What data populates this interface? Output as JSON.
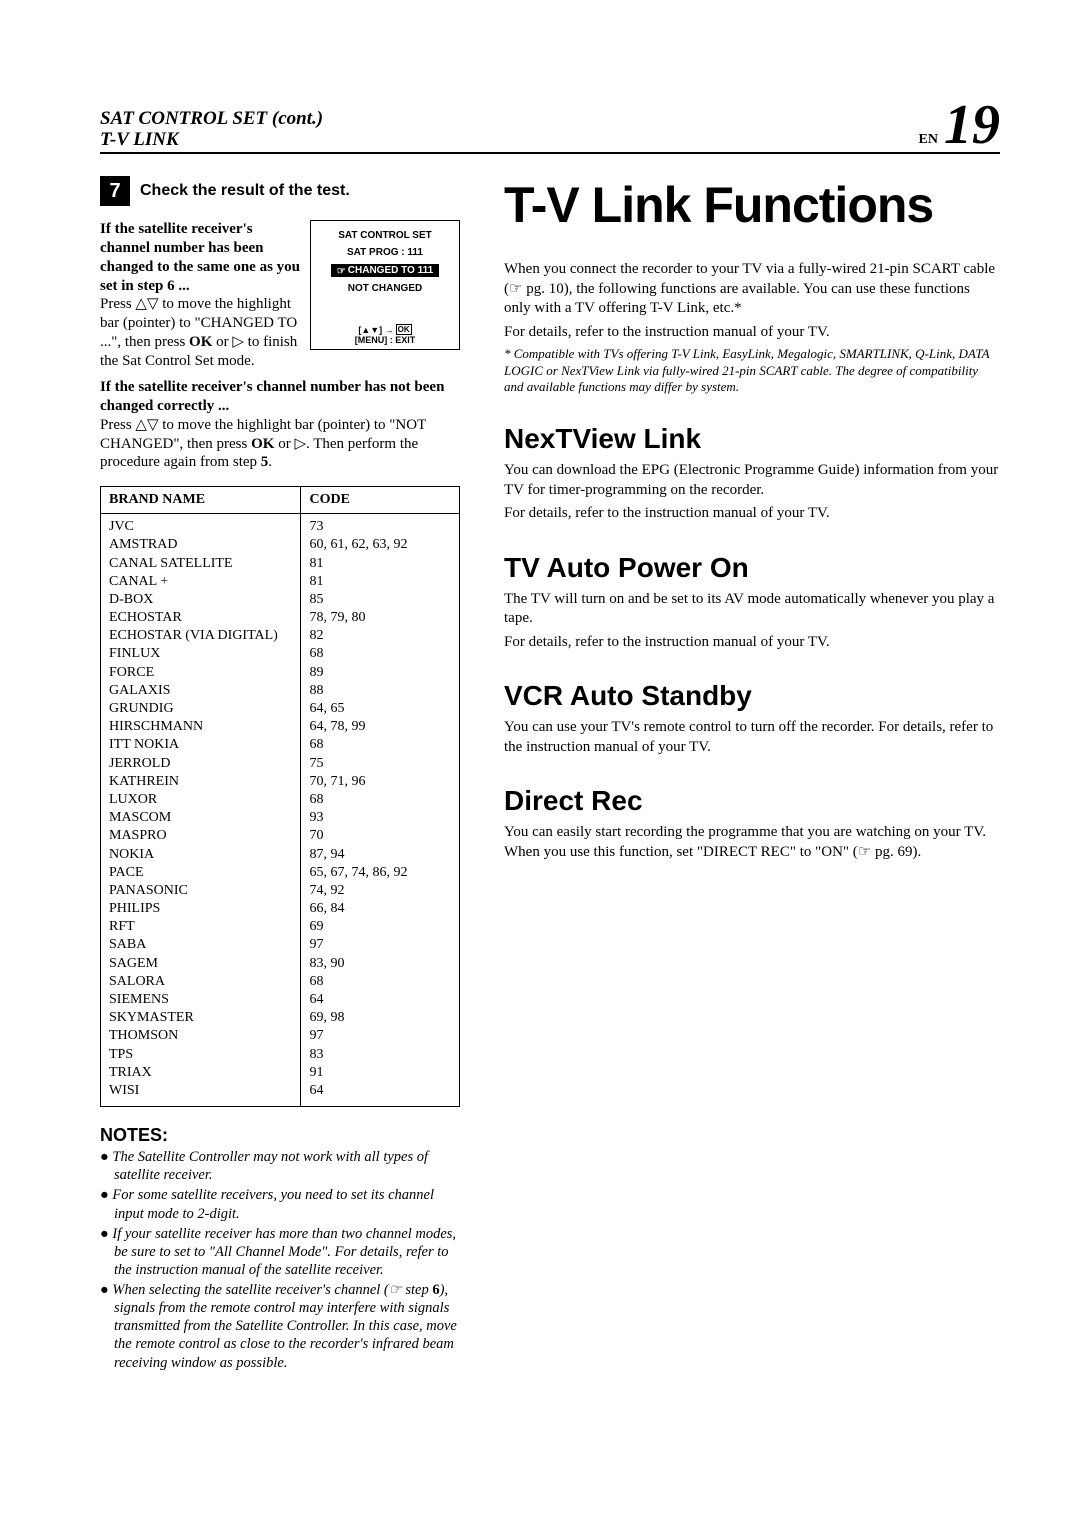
{
  "header": {
    "title_line1": "SAT CONTROL SET (cont.)",
    "title_line2": "T-V LINK",
    "en_label": "EN",
    "page": "19"
  },
  "step": {
    "num": "7",
    "title": "Check the result of the test."
  },
  "intro": {
    "bold1": "If the satellite receiver's channel number has been changed to the same one as you set in step 6 ...",
    "text1a": "Press ",
    "text1b": " to move the highlight bar (pointer) to \"CHANGED TO ...\", then press ",
    "ok": "OK",
    "text1c": " or ▷ to finish the Sat Control Set mode.",
    "bold2": "If the satellite receiver's channel number has not been changed correctly ...",
    "text2a": "Press ",
    "text2b": " to move the highlight bar (pointer) to \"NOT CHANGED\", then press ",
    "text2c": " or ▷. Then perform the procedure again from step ",
    "step5": "5",
    "period": "."
  },
  "osd": {
    "line1": "SAT CONTROL SET",
    "line2": "SAT PROG : 111",
    "highlight": "CHANGED TO 111",
    "line4": "NOT CHANGED",
    "footer_nav": "[▲▼] →",
    "footer_menu": "[MENU] : EXIT"
  },
  "table": {
    "h_brand": "BRAND NAME",
    "h_code": "CODE",
    "rows": [
      {
        "b": "JVC",
        "c": "73"
      },
      {
        "b": "AMSTRAD",
        "c": "60, 61, 62, 63, 92"
      },
      {
        "b": "CANAL SATELLITE",
        "c": "81"
      },
      {
        "b": "CANAL +",
        "c": "81"
      },
      {
        "b": "D-BOX",
        "c": "85"
      },
      {
        "b": "ECHOSTAR",
        "c": "78, 79, 80"
      },
      {
        "b": "ECHOSTAR (VIA DIGITAL)",
        "c": "82"
      },
      {
        "b": "FINLUX",
        "c": "68"
      },
      {
        "b": "FORCE",
        "c": "89"
      },
      {
        "b": "GALAXIS",
        "c": "88"
      },
      {
        "b": "GRUNDIG",
        "c": "64, 65"
      },
      {
        "b": "HIRSCHMANN",
        "c": "64, 78, 99"
      },
      {
        "b": "ITT NOKIA",
        "c": "68"
      },
      {
        "b": "JERROLD",
        "c": "75"
      },
      {
        "b": "KATHREIN",
        "c": "70, 71, 96"
      },
      {
        "b": "LUXOR",
        "c": "68"
      },
      {
        "b": "MASCOM",
        "c": "93"
      },
      {
        "b": "MASPRO",
        "c": "70"
      },
      {
        "b": "NOKIA",
        "c": "87, 94"
      },
      {
        "b": "PACE",
        "c": "65, 67, 74, 86, 92"
      },
      {
        "b": "PANASONIC",
        "c": "74, 92"
      },
      {
        "b": "PHILIPS",
        "c": "66, 84"
      },
      {
        "b": "RFT",
        "c": "69"
      },
      {
        "b": "SABA",
        "c": "97"
      },
      {
        "b": "SAGEM",
        "c": "83, 90"
      },
      {
        "b": "SALORA",
        "c": "68"
      },
      {
        "b": "SIEMENS",
        "c": "64"
      },
      {
        "b": "SKYMASTER",
        "c": "69, 98"
      },
      {
        "b": "THOMSON",
        "c": "97"
      },
      {
        "b": "TPS",
        "c": "83"
      },
      {
        "b": "TRIAX",
        "c": "91"
      },
      {
        "b": "WISI",
        "c": "64"
      }
    ]
  },
  "notes": {
    "heading": "NOTES:",
    "items": [
      "The Satellite Controller may not work with all types of satellite receiver.",
      "For some satellite receivers, you need to set its channel input mode to 2-digit.",
      "If your satellite receiver has more than two channel modes, be sure to set to \"All Channel Mode\". For details, refer to the instruction manual of the satellite receiver.",
      "When selecting the satellite receiver's channel (☞ step 6), signals from the remote control may interfere with signals transmitted from the Satellite Controller. In this case, move the remote control as close to the recorder's infrared beam receiving window as possible."
    ]
  },
  "right": {
    "title": "T-V Link Functions",
    "intro": "When you connect the recorder to your TV via a fully-wired 21-pin SCART cable (☞ pg. 10), the following functions are available. You can use these functions only with a TV offering T-V Link, etc.*",
    "intro2": "For details, refer to the instruction manual of your TV.",
    "footnote": "* Compatible with TVs offering T-V Link, EasyLink, Megalogic, SMARTLINK, Q-Link, DATA LOGIC or NexTView Link via fully-wired 21-pin SCART cable. The degree of compatibility and available functions may differ by system.",
    "sections": [
      {
        "h": "NexTView Link",
        "p": [
          "You can download the EPG (Electronic Programme Guide) information from your TV for timer-programming on the recorder.",
          "For details, refer to the instruction manual of your TV."
        ]
      },
      {
        "h": "TV Auto Power On",
        "p": [
          "The TV will turn on and be set to its AV mode automatically whenever you play a tape.",
          "For details, refer to the instruction manual of your TV."
        ]
      },
      {
        "h": "VCR Auto Standby",
        "p": [
          "You can use your TV's remote control to turn off the recorder. For details, refer to the instruction manual of your TV."
        ]
      },
      {
        "h": "Direct Rec",
        "p": [
          "You can easily start recording the programme that you are watching on your TV. When you use this function, set \"DIRECT REC\" to \"ON\" (☞ pg. 69)."
        ]
      }
    ]
  }
}
